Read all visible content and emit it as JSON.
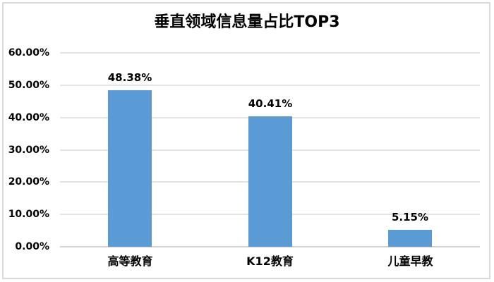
{
  "chart_data": {
    "type": "bar",
    "title": "垂直领域信息量占比TOP3",
    "categories": [
      "高等教育",
      "K12教育",
      "儿童早教"
    ],
    "values": [
      48.38,
      40.41,
      5.15
    ],
    "value_labels": [
      "48.38%",
      "40.41%",
      "5.15%"
    ],
    "y_ticks": [
      "60.00%",
      "50.00%",
      "40.00%",
      "30.00%",
      "20.00%",
      "10.00%",
      "0.00%"
    ],
    "ylim": [
      0,
      60
    ],
    "y_tick_step": 10,
    "xlabel": "",
    "ylabel": "",
    "grid": true,
    "legend": false,
    "colors": {
      "bar": "#5B9BD5",
      "gridline": "#E3E3E3",
      "axis_line": "#D2D2D2",
      "text": "#000000",
      "frame_border": "#D9D9D9",
      "background": "#FFFFFF"
    }
  }
}
